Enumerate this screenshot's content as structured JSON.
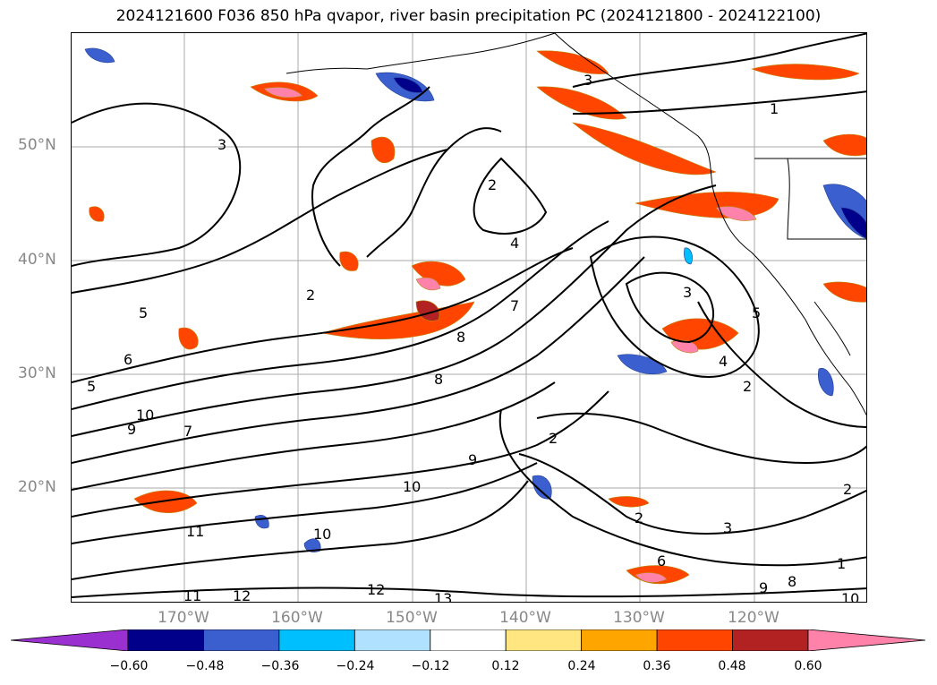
{
  "title": "2024121600 F036 850 hPa qvapor, river basin precipitation PC (2024121800 - 2024122100)",
  "latitude_labels": [
    "50°N",
    "40°N",
    "30°N",
    "20°N"
  ],
  "longitude_labels": [
    "170°W",
    "160°W",
    "150°W",
    "140°W",
    "130°W",
    "120°W"
  ],
  "colorbar": {
    "tick_labels": [
      "−0.60",
      "−0.48",
      "−0.36",
      "−0.24",
      "−0.12",
      "0.12",
      "0.24",
      "0.36",
      "0.48",
      "0.60"
    ],
    "colors": [
      "#9b30d0",
      "#00008b",
      "#3b5fcf",
      "#00bfff",
      "#b0e2ff",
      "#ffffff",
      "#ffe680",
      "#ffa500",
      "#ff4500",
      "#b22222",
      "#ff82ab"
    ]
  },
  "contour_labels": [
    "3",
    "2",
    "5",
    "6",
    "5",
    "4",
    "2",
    "8",
    "7",
    "8",
    "3",
    "4",
    "2",
    "9",
    "7",
    "10",
    "9",
    "10",
    "11",
    "12",
    "13",
    "11",
    "12",
    "10",
    "2",
    "3",
    "2",
    "6",
    "5",
    "1",
    "8",
    "9",
    "10",
    "2",
    "1",
    "3"
  ]
}
